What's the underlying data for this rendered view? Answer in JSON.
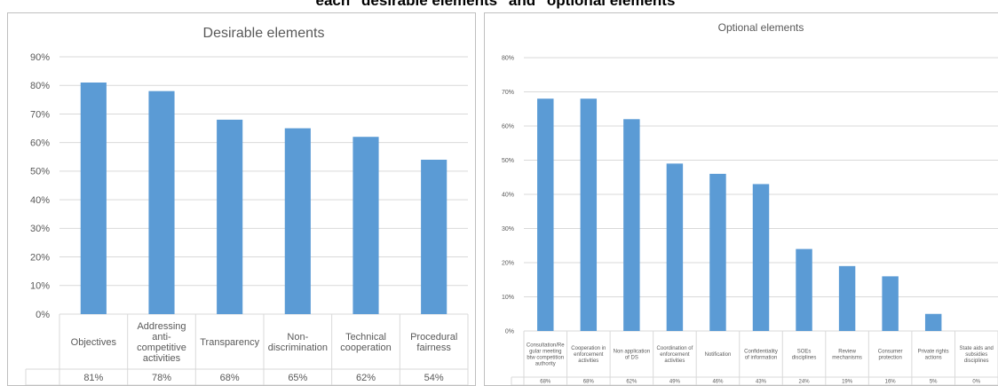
{
  "page": {
    "caption": "each \"desirable elements\" and \"optional elements\""
  },
  "colors": {
    "bar": "#5b9bd5",
    "grid": "#d9d9d9",
    "axis_text": "#595959"
  },
  "chart_data": [
    {
      "type": "bar",
      "title": "Desirable elements",
      "categories": [
        "Objectives",
        "Addressing anti-competitive activities",
        "Transparency",
        "Non-discrimination",
        "Technical cooperation",
        "Procedural fairness"
      ],
      "category_lines": [
        [
          "Objectives"
        ],
        [
          "Addressing",
          "anti-",
          "competitive",
          "activities"
        ],
        [
          "Transparency"
        ],
        [
          "Non-",
          "discrimination"
        ],
        [
          "Technical",
          "cooperation"
        ],
        [
          "Procedural",
          "fairness"
        ]
      ],
      "values": [
        81,
        78,
        68,
        65,
        62,
        54
      ],
      "value_labels": [
        "81%",
        "78%",
        "68%",
        "65%",
        "62%",
        "54%"
      ],
      "yticks": [
        "0%",
        "10%",
        "20%",
        "30%",
        "40%",
        "50%",
        "60%",
        "70%",
        "80%",
        "90%"
      ],
      "ylim": [
        0,
        90
      ],
      "grid": true,
      "data_table": true
    },
    {
      "type": "bar",
      "title": "Optional elements",
      "categories": [
        "Consultation/Regular meeting btw competition authority",
        "Cooperation in enforcement activities",
        "Non application of DS",
        "Coordination of enforcement activities",
        "Notification",
        "Confidentiality of information",
        "SOEs disciplines",
        "Review mechanisms",
        "Consumer protection",
        "Private rights actions",
        "State aids and subsidies disciplines"
      ],
      "category_lines": [
        [
          "Consultation/Re",
          "gular meeting",
          "btw competition",
          "authority"
        ],
        [
          "Cooperation in",
          "enforcement",
          "activities"
        ],
        [
          "Non application",
          "of DS"
        ],
        [
          "Coordination of",
          "enforcement",
          "activities"
        ],
        [
          "Notification"
        ],
        [
          "Confidentiality",
          "of information"
        ],
        [
          "SOEs",
          "disciplines"
        ],
        [
          "Review",
          "mechanisms"
        ],
        [
          "Consumer",
          "protection"
        ],
        [
          "Private rights",
          "actions"
        ],
        [
          "State aids and",
          "subsidies",
          "disciplines"
        ]
      ],
      "values": [
        68,
        68,
        62,
        49,
        46,
        43,
        24,
        19,
        16,
        5,
        0
      ],
      "value_labels": [
        "68%",
        "68%",
        "62%",
        "49%",
        "46%",
        "43%",
        "24%",
        "19%",
        "16%",
        "5%",
        "0%"
      ],
      "yticks": [
        "0%",
        "10%",
        "20%",
        "30%",
        "40%",
        "50%",
        "60%",
        "70%",
        "80%"
      ],
      "ylim": [
        0,
        80
      ],
      "grid": true,
      "data_table": true
    }
  ]
}
